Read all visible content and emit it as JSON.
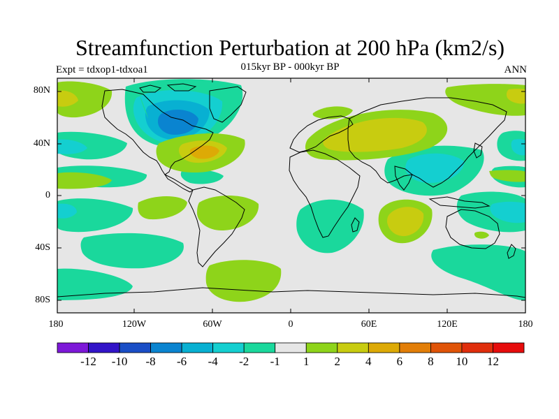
{
  "title": "Streamfunction Perturbation at 200 hPa (km2/s)",
  "left_label": "Expt = tdxop1-tdxoa1",
  "center_label": "015kyr BP - 000kyr BP",
  "right_label": "ANN",
  "y_axis_labels": [
    "80N",
    "40N",
    "0",
    "40S",
    "80S"
  ],
  "x_axis_labels": [
    "180",
    "120W",
    "60W",
    "0",
    "60E",
    "120E",
    "180"
  ],
  "colorbar": {
    "tick_labels": [
      "-12",
      "-10",
      "-8",
      "-6",
      "-4",
      "-2",
      "-1",
      "1",
      "2",
      "4",
      "6",
      "8",
      "10",
      "12"
    ],
    "colors": [
      "#7d18d8",
      "#3214c8",
      "#1a4ec6",
      "#0a84d0",
      "#08b0d2",
      "#14cfd0",
      "#1ad89c",
      "#e6e6e6",
      "#8ed41a",
      "#c8cc10",
      "#ddaa06",
      "#e27e08",
      "#e05408",
      "#e02e0c",
      "#e60c0c"
    ]
  },
  "map": {
    "projection": "cylindrical equidistant",
    "lon_range": [
      -180,
      180
    ],
    "lat_range": [
      -90,
      90
    ],
    "background_color": "#e6e6e6"
  }
}
